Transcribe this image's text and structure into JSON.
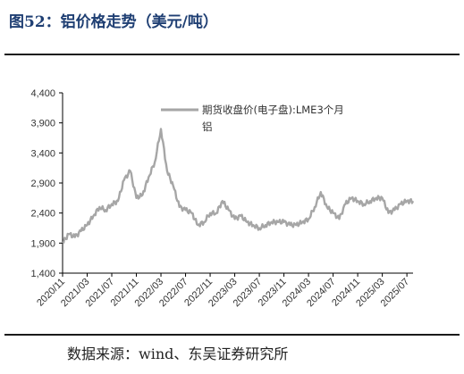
{
  "figure": {
    "title": "图52：铝价格走势（美元/吨）",
    "source": "数据来源：wind、东吴证券研究所"
  },
  "chart_data": {
    "type": "line",
    "title": "",
    "xlabel": "",
    "ylabel": "",
    "ylim": [
      1400,
      4400
    ],
    "y_ticks": [
      1400,
      1900,
      2400,
      2900,
      3400,
      3900,
      4400
    ],
    "y_tick_labels": [
      "1,400",
      "1,900",
      "2,400",
      "2,900",
      "3,400",
      "3,900",
      "4,400"
    ],
    "x_tick_labels": [
      "2020/11",
      "2021/03",
      "2021/07",
      "2021/11",
      "2022/03",
      "2022/07",
      "2022/11",
      "2023/03",
      "2023/07",
      "2023/11",
      "2024/03",
      "2024/07",
      "2024/11",
      "2025/03",
      "2025/07"
    ],
    "grid": false,
    "legend_position": "top-right",
    "colors": {
      "series": "#a6a6a6",
      "axis": "#000000"
    },
    "series": [
      {
        "name": "期货收盘价(电子盘):LME3个月铝",
        "x": [
          "2020/11",
          "2020/12",
          "2021/01",
          "2021/02",
          "2021/03",
          "2021/04",
          "2021/05",
          "2021/06",
          "2021/07",
          "2021/08",
          "2021/09",
          "2021/10",
          "2021/11",
          "2021/12",
          "2022/01",
          "2022/02",
          "2022/03",
          "2022/04",
          "2022/05",
          "2022/06",
          "2022/07",
          "2022/08",
          "2022/09",
          "2022/10",
          "2022/11",
          "2022/12",
          "2023/01",
          "2023/02",
          "2023/03",
          "2023/04",
          "2023/05",
          "2023/06",
          "2023/07",
          "2023/08",
          "2023/09",
          "2023/10",
          "2023/11",
          "2023/12",
          "2024/01",
          "2024/02",
          "2024/03",
          "2024/04",
          "2024/05",
          "2024/06",
          "2024/07",
          "2024/08",
          "2024/09",
          "2024/10",
          "2024/11",
          "2024/12",
          "2025/01",
          "2025/02",
          "2025/03",
          "2025/04",
          "2025/05",
          "2025/06",
          "2025/07",
          "2025/08"
        ],
        "values": [
          1900,
          2050,
          2000,
          2100,
          2200,
          2350,
          2500,
          2450,
          2550,
          2600,
          2950,
          3100,
          2650,
          2700,
          3000,
          3250,
          3800,
          3100,
          2850,
          2500,
          2450,
          2400,
          2200,
          2250,
          2400,
          2400,
          2600,
          2450,
          2300,
          2350,
          2250,
          2200,
          2150,
          2200,
          2250,
          2250,
          2250,
          2200,
          2200,
          2250,
          2300,
          2500,
          2750,
          2500,
          2400,
          2300,
          2550,
          2650,
          2600,
          2550,
          2600,
          2650,
          2650,
          2400,
          2450,
          2550,
          2600,
          2600
        ]
      }
    ]
  }
}
